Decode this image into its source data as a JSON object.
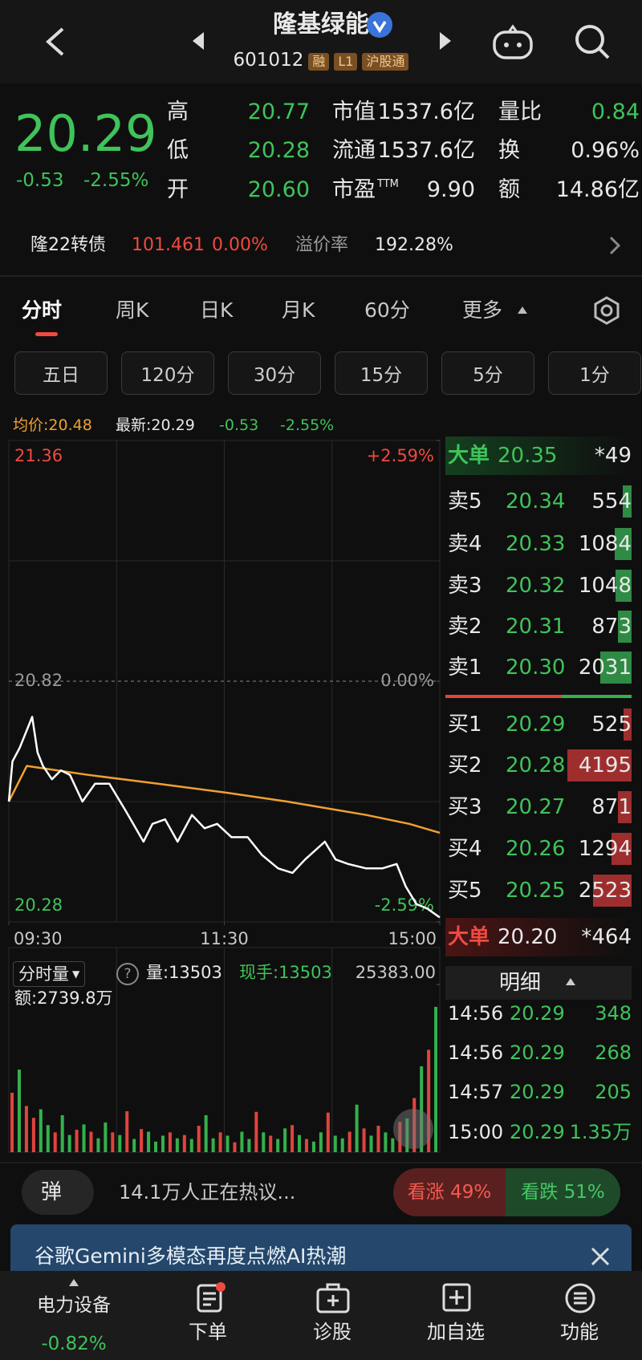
{
  "header": {
    "title": "隆基绿能",
    "code": "601012",
    "tags": [
      "融",
      "L1",
      "沪股通"
    ]
  },
  "quote": {
    "price": "20.29",
    "change": "-0.53",
    "change_pct": "-2.55%",
    "stats": [
      {
        "label": "高",
        "value": "20.77"
      },
      {
        "label": "市值",
        "value": "1537.6亿"
      },
      {
        "label": "量比",
        "value": "0.84"
      },
      {
        "label": "低",
        "value": "20.28"
      },
      {
        "label": "流通",
        "value": "1537.6亿"
      },
      {
        "label": "换",
        "value": "0.96%"
      },
      {
        "label": "开",
        "value": "20.60"
      },
      {
        "label": "市盈",
        "sup": "TTM",
        "value": "9.90"
      },
      {
        "label": "额",
        "value": "14.86亿"
      }
    ]
  },
  "bond": {
    "name": "隆22转债",
    "price": "101.461",
    "change_pct": "0.00%",
    "premium_label": "溢价率",
    "premium": "192.28%"
  },
  "tabs": [
    "分时",
    "周K",
    "日K",
    "月K",
    "60分",
    "更多"
  ],
  "subtabs": [
    "五日",
    "120分",
    "30分",
    "15分",
    "5分",
    "1分"
  ],
  "chart_info": {
    "avg": "均价:20.48",
    "latest": "最新:20.29",
    "change": "-0.53",
    "change_pct": "-2.55%"
  },
  "chart_data": [
    {
      "type": "line",
      "series": [
        {
          "color": "#ffffff",
          "x": [
            0,
            2,
            6,
            10,
            13,
            16,
            19,
            24,
            29,
            34,
            41,
            48,
            56,
            65,
            75,
            80,
            87,
            94,
            102,
            109,
            116,
            124,
            133,
            141,
            150,
            158,
            165,
            176,
            182,
            189,
            199,
            208,
            216,
            221,
            227,
            233,
            240
          ],
          "values": [
            20.55,
            20.64,
            20.67,
            20.71,
            20.74,
            20.66,
            20.63,
            20.6,
            20.62,
            20.61,
            20.55,
            20.59,
            20.59,
            20.53,
            20.46,
            20.5,
            20.51,
            20.46,
            20.52,
            20.49,
            20.5,
            20.47,
            20.47,
            20.43,
            20.4,
            20.39,
            20.42,
            20.46,
            20.42,
            20.41,
            20.4,
            20.4,
            20.41,
            20.36,
            20.32,
            20.31,
            20.29
          ]
        },
        {
          "color": "#f0a030",
          "x": [
            0,
            10,
            44,
            83,
            121,
            155,
            199,
            223,
            240
          ],
          "values": [
            20.55,
            20.63,
            20.61,
            20.59,
            20.57,
            20.55,
            20.52,
            20.5,
            20.48
          ]
        }
      ],
      "xlim": [
        0,
        240
      ],
      "xticks": [
        {
          "value": 0,
          "label": "09:30"
        },
        {
          "value": 120,
          "label": "11:30"
        },
        {
          "value": 240,
          "label": "15:00"
        }
      ],
      "ylim": [
        20.28,
        21.36
      ],
      "yticks": [
        21.36,
        20.82,
        20.28
      ],
      "y2lim": [
        -2.59,
        2.59
      ],
      "y2ticks": [
        {
          "value": 2.59,
          "label": "+2.59%"
        },
        {
          "value": 0,
          "label": "0.00%"
        },
        {
          "value": -2.59,
          "label": "-2.59%"
        }
      ],
      "grid": true
    },
    {
      "type": "bar",
      "x": [
        0,
        4,
        8,
        12,
        16,
        20,
        24,
        28,
        32,
        36,
        40,
        44,
        48,
        52,
        56,
        60,
        64,
        68,
        72,
        76,
        80,
        84,
        88,
        92,
        96,
        100,
        104,
        108,
        112,
        116,
        120,
        124,
        128,
        132,
        136,
        140,
        144,
        148,
        152,
        156,
        160,
        164,
        168,
        172,
        176,
        180,
        184,
        188,
        192,
        196,
        200,
        204,
        208,
        212,
        216,
        220,
        224,
        228,
        232,
        236
      ],
      "values": [
        9000,
        12500,
        7000,
        5200,
        6500,
        4100,
        3000,
        5600,
        2600,
        3400,
        4200,
        3100,
        2100,
        4500,
        3000,
        2600,
        6200,
        2000,
        3500,
        3100,
        1600,
        2500,
        3000,
        2100,
        2600,
        2000,
        4000,
        5600,
        2100,
        3000,
        2500,
        1500,
        3100,
        2000,
        6100,
        3000,
        2500,
        2000,
        3600,
        4100,
        2600,
        2000,
        1600,
        3000,
        6000,
        2500,
        2100,
        3100,
        7200,
        3600,
        2500,
        4000,
        3000,
        2100,
        4600,
        5100,
        8200,
        13000,
        15500,
        22000
      ],
      "colors": [
        "#e0443c",
        "#34b04c",
        "#e0443c",
        "#e0443c",
        "#34b04c",
        "#34b04c",
        "#e0443c",
        "#34b04c",
        "#34b04c",
        "#e0443c",
        "#34b04c",
        "#e0443c",
        "#34b04c",
        "#34b04c",
        "#e0443c",
        "#34b04c",
        "#e0443c",
        "#34b04c",
        "#e0443c",
        "#34b04c",
        "#34b04c",
        "#34b04c",
        "#e0443c",
        "#34b04c",
        "#e0443c",
        "#34b04c",
        "#e0443c",
        "#34b04c",
        "#34b04c",
        "#e0443c",
        "#34b04c",
        "#e0443c",
        "#34b04c",
        "#34b04c",
        "#e0443c",
        "#34b04c",
        "#e0443c",
        "#34b04c",
        "#34b04c",
        "#e0443c",
        "#34b04c",
        "#e0443c",
        "#34b04c",
        "#34b04c",
        "#e0443c",
        "#34b04c",
        "#34b04c",
        "#e0443c",
        "#34b04c",
        "#e0443c",
        "#34b04c",
        "#e0443c",
        "#34b04c",
        "#34b04c",
        "#e0443c",
        "#34b04c",
        "#e0443c",
        "#34b04c",
        "#e0443c",
        "#34b04c"
      ],
      "xlim": [
        0,
        240
      ],
      "ylim": [
        0,
        25383
      ],
      "yticks": [
        {
          "value": 25383,
          "label": "25383.00"
        }
      ]
    }
  ],
  "volume_info": {
    "selector": "分时量",
    "help": "?",
    "volume": "量:13503",
    "hand": "现手:13503",
    "amount": "额:2739.8万"
  },
  "order_book": {
    "big_sell": {
      "label": "大单",
      "price": "20.35",
      "volume": "*49"
    },
    "asks": [
      {
        "label": "卖5",
        "price": "20.34",
        "volume": 554
      },
      {
        "label": "卖4",
        "price": "20.33",
        "volume": 1084
      },
      {
        "label": "卖3",
        "price": "20.32",
        "volume": 1048
      },
      {
        "label": "卖2",
        "price": "20.31",
        "volume": 873
      },
      {
        "label": "卖1",
        "price": "20.30",
        "volume": 2031
      }
    ],
    "bids": [
      {
        "label": "买1",
        "price": "20.29",
        "volume": 525
      },
      {
        "label": "买2",
        "price": "20.28",
        "volume": 4195
      },
      {
        "label": "买3",
        "price": "20.27",
        "volume": 871
      },
      {
        "label": "买4",
        "price": "20.26",
        "volume": 1294
      },
      {
        "label": "买5",
        "price": "20.25",
        "volume": 2523
      }
    ],
    "big_buy": {
      "label": "大单",
      "price": "20.20",
      "volume": "*464"
    }
  },
  "details": {
    "title": "明细",
    "rows": [
      {
        "time": "14:56",
        "price": "20.29",
        "volume": "348"
      },
      {
        "time": "14:56",
        "price": "20.29",
        "volume": "268"
      },
      {
        "time": "14:57",
        "price": "20.29",
        "volume": "205"
      },
      {
        "time": "15:00",
        "price": "20.29",
        "volume": "1.35万"
      }
    ]
  },
  "community": {
    "badge": "弹",
    "text": "14.1万人正在热议...",
    "bull": "看涨 49%",
    "bear": "看跌 51%"
  },
  "banner": {
    "text": "谷歌Gemini多模态再度点燃AI热潮"
  },
  "nav": {
    "sector": "电力设备",
    "sector_change": "-0.82%",
    "items": [
      "下单",
      "诊股",
      "加自选",
      "功能"
    ]
  }
}
